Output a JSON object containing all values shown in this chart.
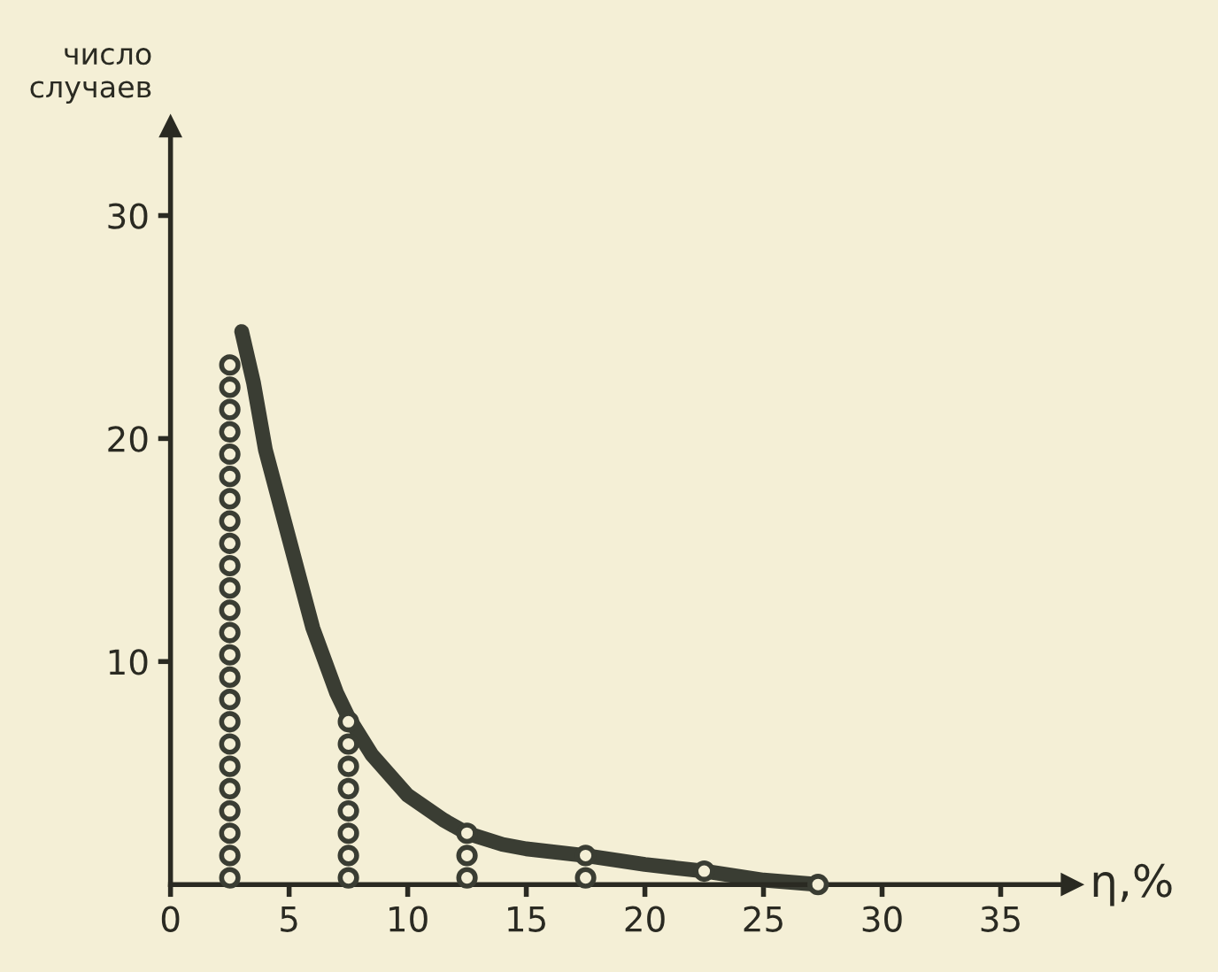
{
  "chart_data": {
    "type": "line",
    "ylabel": "число\nслучаев",
    "xlabel": "η,%",
    "xlim": [
      0,
      38
    ],
    "ylim": [
      0,
      34
    ],
    "xticks": [
      0,
      5,
      10,
      15,
      20,
      25,
      30,
      35
    ],
    "yticks": [
      10,
      20,
      30
    ],
    "grid": false,
    "legend": false,
    "series": [
      {
        "type": "scatter",
        "marker": "circle",
        "color": "#3a3d33",
        "x": [
          2.5,
          2.5,
          2.5,
          2.5,
          2.5,
          2.5,
          2.5,
          2.5,
          2.5,
          2.5,
          2.5,
          2.5,
          2.5,
          2.5,
          2.5,
          2.5,
          2.5,
          2.5,
          2.5,
          2.5,
          2.5,
          2.5,
          2.5,
          2.5,
          7.5,
          7.5,
          7.5,
          7.5,
          7.5,
          7.5,
          7.5,
          7.5,
          12.5,
          12.5,
          12.5,
          17.5,
          17.5,
          22.5,
          27.3
        ],
        "values": [
          0.3,
          1.3,
          2.3,
          3.3,
          4.3,
          5.3,
          6.3,
          7.3,
          8.3,
          9.3,
          10.3,
          11.3,
          12.3,
          13.3,
          14.3,
          15.3,
          16.3,
          17.3,
          18.3,
          19.3,
          20.3,
          21.3,
          22.3,
          23.3,
          0.3,
          1.3,
          2.3,
          3.3,
          4.3,
          5.3,
          6.3,
          7.3,
          0.3,
          1.3,
          2.3,
          0.3,
          1.3,
          0.6,
          0
        ]
      },
      {
        "marker": "none",
        "line_style": "solid",
        "color": "#3a3d33",
        "x": [
          3,
          3.5,
          4,
          5,
          6,
          7,
          7.5,
          8.5,
          10,
          11.5,
          12.5,
          14,
          15,
          17.5,
          20,
          22.5,
          25,
          27.3
        ],
        "values": [
          24.8,
          22.5,
          19.5,
          15.5,
          11.5,
          8.6,
          7.5,
          5.8,
          4.0,
          2.9,
          2.3,
          1.8,
          1.6,
          1.3,
          0.9,
          0.6,
          0.2,
          0
        ]
      }
    ]
  }
}
